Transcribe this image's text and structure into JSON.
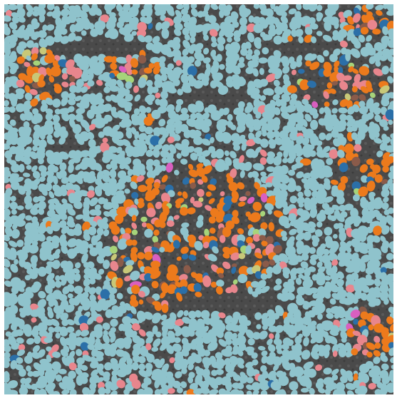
{
  "image": {
    "kind": "segmented tissue microscopy overlay",
    "background_color": "#4d4d4d",
    "border_color": "#ffffff"
  },
  "legend_colors": {
    "dominant_cells": "#8fc3cc",
    "tumor_cells": "#ec7a1c",
    "pink_cells": "#e8868d",
    "blue_cells": "#2b6fa8",
    "green_cells": "#a6d47a",
    "brown_cells": "#8a5b4a",
    "magenta_cells": "#d95fc0",
    "olive_cells": "#c8c878"
  }
}
